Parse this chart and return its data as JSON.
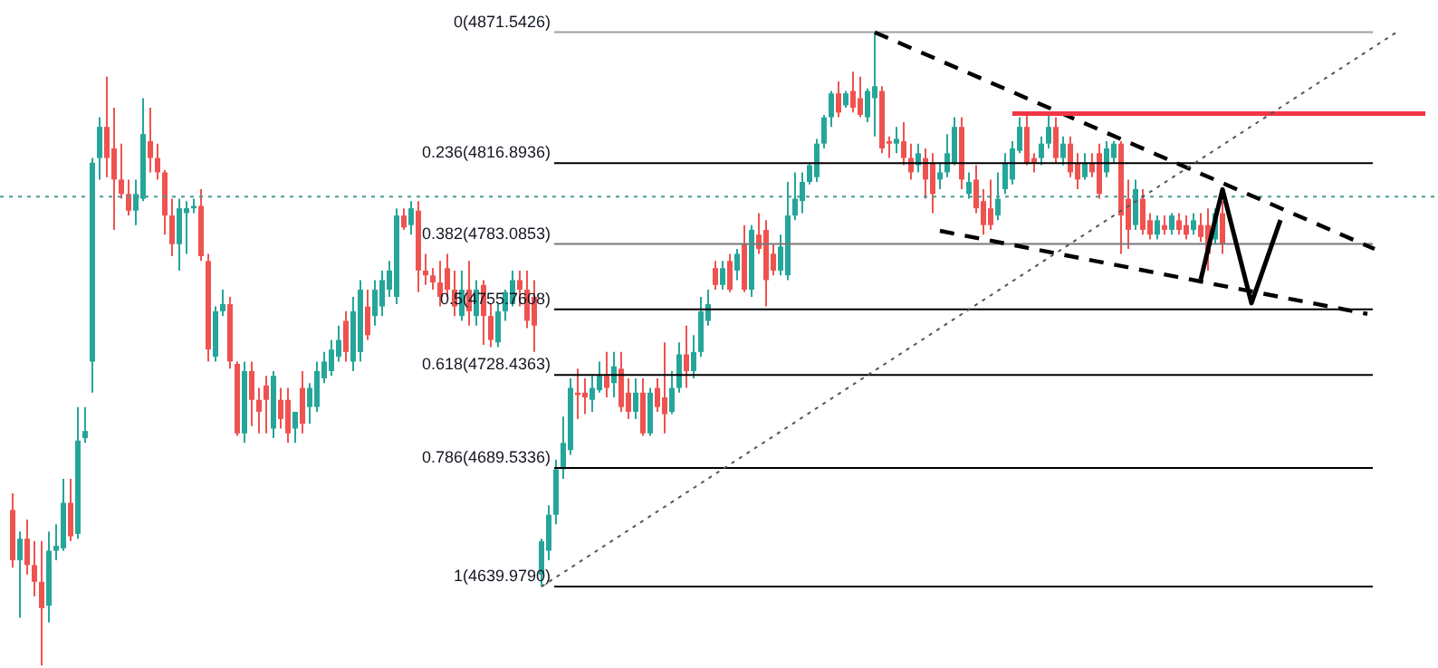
{
  "chart_data": {
    "type": "candlestick",
    "tick_labels": false,
    "ylim": [
      4606,
      4885
    ],
    "categories": [
      null,
      null,
      null,
      null,
      null,
      null,
      null,
      null,
      null,
      null,
      null,
      null,
      null,
      null,
      null,
      null,
      null,
      null,
      null,
      null,
      null,
      null,
      null,
      null,
      null,
      null,
      null,
      null,
      null,
      null,
      null,
      null,
      null,
      null,
      null,
      null,
      null,
      null,
      null,
      null,
      null,
      null,
      null,
      null,
      null,
      null,
      null,
      null,
      null,
      null,
      null,
      null,
      null,
      null,
      null,
      null,
      null,
      null,
      null,
      null,
      null,
      null,
      null,
      null,
      null,
      null,
      null,
      null,
      null,
      null,
      null,
      null,
      null,
      null,
      null,
      null,
      null,
      null,
      null,
      null,
      null,
      null,
      null,
      null,
      null,
      null,
      null,
      null,
      null,
      null,
      null,
      null,
      null,
      null,
      null,
      null,
      null,
      null,
      null,
      null,
      null,
      null,
      null,
      null,
      null,
      null,
      null,
      null,
      null,
      null,
      null,
      null,
      null,
      null,
      null,
      null,
      null,
      null,
      null,
      null,
      null,
      null,
      null,
      null,
      null,
      null,
      null,
      null,
      null,
      null,
      null,
      null,
      null,
      null,
      null,
      null,
      null,
      null,
      null,
      null,
      null,
      null,
      null,
      null,
      null,
      null,
      null,
      null,
      null,
      null,
      null,
      null,
      null,
      null,
      null,
      null,
      null,
      null,
      null,
      null,
      null,
      null,
      null,
      null,
      null,
      null,
      null,
      null,
      null,
      null,
      null,
      null,
      null,
      null,
      null,
      null,
      null,
      null,
      null,
      null,
      null,
      null,
      null,
      null,
      null,
      null,
      null,
      null,
      null,
      null,
      null,
      null,
      null,
      null,
      null,
      null
    ],
    "ohlc": [
      [
        4672,
        4679,
        4648,
        4651
      ],
      [
        4651,
        4663,
        4627,
        4660
      ],
      [
        4660,
        4668,
        4645,
        4649
      ],
      [
        4649,
        4659,
        4636,
        4642
      ],
      [
        4642,
        4659,
        4607,
        4631
      ],
      [
        4632,
        4663,
        4625,
        4655
      ],
      [
        4655,
        4666,
        4651,
        4657
      ],
      [
        4656,
        4685,
        4655,
        4675
      ],
      [
        4675,
        4685,
        4659,
        4661
      ],
      [
        4662,
        4715,
        4660,
        4701
      ],
      [
        4702,
        4715,
        4700,
        4705
      ],
      [
        4734,
        4819,
        4721,
        4817
      ],
      [
        4819,
        4836,
        4810,
        4832
      ],
      [
        4832,
        4853,
        4811,
        4819
      ],
      [
        4823,
        4840,
        4789,
        4810
      ],
      [
        4810,
        4825,
        4802,
        4804
      ],
      [
        4804,
        4810,
        4795,
        4797
      ],
      [
        4797,
        4810,
        4791,
        4804
      ],
      [
        4802,
        4844,
        4801,
        4829
      ],
      [
        4826,
        4840,
        4813,
        4819
      ],
      [
        4819,
        4825,
        4810,
        4813
      ],
      [
        4813,
        4814,
        4787,
        4795
      ],
      [
        4795,
        4802,
        4778,
        4783
      ],
      [
        4783,
        4802,
        4772,
        4798
      ],
      [
        4796,
        4801,
        4779,
        4798
      ],
      [
        4798,
        4802,
        4796,
        4799
      ],
      [
        4799,
        4806,
        4776,
        4778
      ],
      [
        4776,
        4779,
        4734,
        4739
      ],
      [
        4736,
        4757,
        4734,
        4755
      ],
      [
        4755,
        4764,
        4753,
        4758
      ],
      [
        4758,
        4761,
        4731,
        4734
      ],
      [
        4733,
        4734,
        4703,
        4704
      ],
      [
        4704,
        4734,
        4700,
        4730
      ],
      [
        4730,
        4734,
        4707,
        4718
      ],
      [
        4718,
        4723,
        4704,
        4713
      ],
      [
        4724,
        4728,
        4704,
        4718
      ],
      [
        4706,
        4730,
        4702,
        4728
      ],
      [
        4718,
        4723,
        4706,
        4710
      ],
      [
        4718,
        4723,
        4700,
        4704
      ],
      [
        4706,
        4713,
        4700,
        4713
      ],
      [
        4723,
        4730,
        4704,
        4708
      ],
      [
        4715,
        4725,
        4708,
        4723
      ],
      [
        4715,
        4734,
        4713,
        4730
      ],
      [
        4727,
        4738,
        4725,
        4734
      ],
      [
        4730,
        4743,
        4728,
        4739
      ],
      [
        4736,
        4749,
        4734,
        4743
      ],
      [
        4751,
        4755,
        4734,
        4738
      ],
      [
        4734,
        4761,
        4730,
        4755
      ],
      [
        4738,
        4768,
        4734,
        4764
      ],
      [
        4757,
        4764,
        4743,
        4745
      ],
      [
        4753,
        4768,
        4749,
        4764
      ],
      [
        4757,
        4772,
        4753,
        4768
      ],
      [
        4764,
        4776,
        4761,
        4772
      ],
      [
        4761,
        4798,
        4758,
        4795
      ],
      [
        4795,
        4798,
        4789,
        4790
      ],
      [
        4791,
        4801,
        4787,
        4798
      ],
      [
        4797,
        4801,
        4763,
        4772
      ],
      [
        4772,
        4779,
        4766,
        4770
      ],
      [
        4770,
        4773,
        4764,
        4767
      ],
      [
        4767,
        4776,
        4757,
        4761
      ],
      [
        4773,
        4779,
        4761,
        4764
      ],
      [
        4764,
        4772,
        4753,
        4757
      ],
      [
        4753,
        4772,
        4751,
        4764
      ],
      [
        4764,
        4776,
        4749,
        4755
      ],
      [
        4753,
        4768,
        4749,
        4764
      ],
      [
        4766,
        4768,
        4741,
        4753
      ],
      [
        4753,
        4758,
        4740,
        4743
      ],
      [
        4742,
        4758,
        4740,
        4755
      ],
      [
        4755,
        4764,
        4751,
        4763
      ],
      [
        4758,
        4772,
        4757,
        4768
      ],
      [
        4768,
        4772,
        4757,
        4764
      ],
      [
        4764,
        4772,
        4748,
        4751
      ],
      [
        4761,
        4768,
        4738,
        4749
      ],
      [
        4645,
        4660,
        4640,
        4659
      ],
      [
        4655,
        4674,
        4651,
        4670
      ],
      [
        4670,
        4693,
        4666,
        4689
      ],
      [
        4689,
        4711,
        4685,
        4700
      ],
      [
        4697,
        4727,
        4695,
        4723
      ],
      [
        4721,
        4731,
        4710,
        4720
      ],
      [
        4721,
        4727,
        4712,
        4719
      ],
      [
        4718,
        4728,
        4713,
        4723
      ],
      [
        4722,
        4734,
        4721,
        4728
      ],
      [
        4728,
        4738,
        4719,
        4723
      ],
      [
        4725,
        4738,
        4719,
        4732
      ],
      [
        4731,
        4738,
        4713,
        4715
      ],
      [
        4721,
        4727,
        4710,
        4713
      ],
      [
        4713,
        4727,
        4710,
        4721
      ],
      [
        4721,
        4727,
        4703,
        4704
      ],
      [
        4704,
        4723,
        4703,
        4721
      ],
      [
        4723,
        4727,
        4713,
        4715
      ],
      [
        4719,
        4742,
        4704,
        4712
      ],
      [
        4713,
        4730,
        4712,
        4723
      ],
      [
        4723,
        4742,
        4721,
        4737
      ],
      [
        4737,
        4749,
        4723,
        4730
      ],
      [
        4730,
        4745,
        4727,
        4738
      ],
      [
        4738,
        4761,
        4736,
        4755
      ],
      [
        4751,
        4764,
        4749,
        4758
      ],
      [
        4773,
        4776,
        4764,
        4766
      ],
      [
        4766,
        4776,
        4764,
        4773
      ],
      [
        4776,
        4779,
        4763,
        4764
      ],
      [
        4772,
        4781,
        4768,
        4779
      ],
      [
        4783,
        4791,
        4763,
        4764
      ],
      [
        4764,
        4791,
        4761,
        4789
      ],
      [
        4787,
        4796,
        4779,
        4781
      ],
      [
        4789,
        4793,
        4757,
        4768
      ],
      [
        4779,
        4783,
        4770,
        4772
      ],
      [
        4772,
        4787,
        4770,
        4782
      ],
      [
        4770,
        4809,
        4768,
        4795
      ],
      [
        4795,
        4813,
        4793,
        4802
      ],
      [
        4801,
        4813,
        4796,
        4809
      ],
      [
        4809,
        4817,
        4808,
        4816
      ],
      [
        4811,
        4827,
        4809,
        4825
      ],
      [
        4825,
        4837,
        4823,
        4836
      ],
      [
        4836,
        4847,
        4832,
        4846
      ],
      [
        4846,
        4851,
        4836,
        4838
      ],
      [
        4841,
        4847,
        4840,
        4846
      ],
      [
        4847,
        4855,
        4838,
        4840
      ],
      [
        4844,
        4853,
        4836,
        4837
      ],
      [
        4836,
        4848,
        4834,
        4847
      ],
      [
        4844,
        4871.5426,
        4828,
        4849
      ],
      [
        4847,
        4849,
        4821,
        4823
      ],
      [
        4826,
        4828,
        4819,
        4825
      ],
      [
        4825,
        4832,
        4821,
        4827
      ],
      [
        4826,
        4834,
        4816,
        4819
      ],
      [
        4819,
        4825,
        4810,
        4813
      ],
      [
        4816,
        4825,
        4813,
        4821
      ],
      [
        4819,
        4823,
        4802,
        4810
      ],
      [
        4817,
        4821,
        4796,
        4804
      ],
      [
        4810,
        4817,
        4806,
        4813
      ],
      [
        4813,
        4829,
        4811,
        4821
      ],
      [
        4817,
        4836,
        4816,
        4832
      ],
      [
        4832,
        4836,
        4806,
        4810
      ],
      [
        4804,
        4813,
        4802,
        4809
      ],
      [
        4810,
        4816,
        4796,
        4798
      ],
      [
        4801,
        4806,
        4787,
        4791
      ],
      [
        4798,
        4810,
        4789,
        4791
      ],
      [
        4795,
        4813,
        4793,
        4802
      ],
      [
        4806,
        4821,
        4804,
        4817
      ],
      [
        4810,
        4826,
        4808,
        4823
      ],
      [
        4822,
        4836,
        4821,
        4832
      ],
      [
        4832,
        4838,
        4816,
        4817
      ],
      [
        4819,
        4821,
        4813,
        4817
      ],
      [
        4819,
        4828,
        4816,
        4825
      ],
      [
        4825,
        4838,
        4823,
        4832
      ],
      [
        4832,
        4836,
        4817,
        4819
      ],
      [
        4819,
        4828,
        4816,
        4825
      ],
      [
        4825,
        4828,
        4811,
        4813
      ],
      [
        4817,
        4821,
        4806,
        4810
      ],
      [
        4811,
        4821,
        4810,
        4817
      ],
      [
        4817,
        4821,
        4811,
        4813
      ],
      [
        4821,
        4825,
        4802,
        4804
      ],
      [
        4813,
        4826,
        4811,
        4823
      ],
      [
        4819,
        4826,
        4817,
        4825
      ],
      [
        4825,
        4826,
        4779,
        4795
      ],
      [
        4802,
        4810,
        4781,
        4789
      ],
      [
        4791,
        4810,
        4789,
        4806
      ],
      [
        4802,
        4806,
        4787,
        4789
      ],
      [
        4793,
        4796,
        4785,
        4787
      ],
      [
        4787,
        4795,
        4785,
        4793
      ],
      [
        4791,
        4795,
        4787,
        4789
      ],
      [
        4789,
        4796,
        4787,
        4795
      ],
      [
        4793,
        4796,
        4787,
        4789
      ],
      [
        4791,
        4795,
        4785,
        4787
      ],
      [
        4789,
        4796,
        4787,
        4793
      ],
      [
        4791,
        4796,
        4784,
        4786
      ],
      [
        4791,
        4798,
        4772,
        4779
      ],
      [
        4785,
        4798,
        4783,
        4796
      ],
      [
        4796,
        4801,
        4779,
        4783
      ],
      null,
      null,
      null,
      null,
      null,
      null,
      null,
      null,
      null,
      null,
      null,
      null,
      null,
      null,
      null,
      null,
      null,
      null,
      null,
      null,
      null,
      null,
      null,
      null,
      null,
      null,
      null,
      null
    ],
    "colors": [
      "#ef5350",
      "#26a69a",
      "#ef5350",
      "#ef5350",
      "#ef5350",
      "#26a69a",
      "#26a69a",
      "#26a69a",
      "#ef5350",
      "#26a69a",
      "#26a69a",
      "#26a69a",
      "#26a69a",
      "#ef5350",
      "#ef5350",
      "#ef5350",
      "#ef5350",
      "#26a69a",
      "#26a69a",
      "#ef5350",
      "#ef5350",
      "#ef5350",
      "#ef5350",
      "#26a69a",
      "#26a69a",
      "#26a69a",
      "#ef5350",
      "#ef5350",
      "#26a69a",
      "#26a69a",
      "#ef5350",
      "#ef5350",
      "#26a69a",
      "#ef5350",
      "#ef5350",
      "#ef5350",
      "#26a69a",
      "#ef5350",
      "#ef5350",
      "#26a69a",
      "#ef5350",
      "#26a69a",
      "#26a69a",
      "#26a69a",
      "#26a69a",
      "#26a69a",
      "#ef5350",
      "#26a69a",
      "#26a69a",
      "#ef5350",
      "#26a69a",
      "#26a69a",
      "#26a69a",
      "#26a69a",
      "#ef5350",
      "#26a69a",
      "#ef5350",
      "#ef5350",
      "#ef5350",
      "#ef5350",
      "#ef5350",
      "#ef5350",
      "#26a69a",
      "#ef5350",
      "#26a69a",
      "#ef5350",
      "#ef5350",
      "#26a69a",
      "#26a69a",
      "#26a69a",
      "#ef5350",
      "#ef5350",
      "#ef5350",
      "#26a69a",
      "#26a69a",
      "#26a69a",
      "#26a69a",
      "#26a69a",
      "#ef5350",
      "#ef5350",
      "#26a69a",
      "#26a69a",
      "#ef5350",
      "#26a69a",
      "#ef5350",
      "#ef5350",
      "#26a69a",
      "#ef5350",
      "#26a69a",
      "#ef5350",
      "#ef5350",
      "#26a69a",
      "#26a69a",
      "#ef5350",
      "#26a69a",
      "#26a69a",
      "#26a69a",
      "#ef5350",
      "#26a69a",
      "#ef5350",
      "#26a69a",
      "#ef5350",
      "#26a69a",
      "#ef5350",
      "#ef5350",
      "#ef5350",
      "#26a69a",
      "#26a69a",
      "#26a69a",
      "#26a69a",
      "#26a69a",
      "#26a69a",
      "#26a69a",
      "#26a69a",
      "#ef5350",
      "#26a69a",
      "#ef5350",
      "#ef5350",
      "#26a69a",
      "#26a69a",
      "#ef5350",
      "#ef5350",
      "#26a69a",
      "#ef5350",
      "#ef5350",
      "#26a69a",
      "#ef5350",
      "#ef5350",
      "#26a69a",
      "#26a69a",
      "#26a69a",
      "#ef5350",
      "#26a69a",
      "#ef5350",
      "#ef5350",
      "#ef5350",
      "#26a69a",
      "#26a69a",
      "#26a69a",
      "#26a69a",
      "#ef5350",
      "#ef5350",
      "#26a69a",
      "#26a69a",
      "#ef5350",
      "#26a69a",
      "#ef5350",
      "#ef5350",
      "#26a69a",
      "#ef5350",
      "#ef5350",
      "#26a69a",
      "#26a69a",
      "#ef5350",
      "#ef5350",
      "#26a69a",
      "#ef5350",
      "#ef5350",
      "#26a69a",
      "#ef5350",
      "#26a69a",
      "#ef5350",
      "#ef5350",
      "#26a69a",
      "#ef5350",
      "#ef5350",
      "#26a69a",
      "#ef5350",
      null,
      null,
      null,
      null,
      null,
      null,
      null,
      null,
      null,
      null,
      null,
      null,
      null,
      null,
      null,
      null,
      null,
      null,
      null,
      null,
      null,
      null,
      null,
      null,
      null,
      null,
      null,
      null
    ],
    "series": [
      {
        "type": "line",
        "color": "#000000",
        "line_style": "dashed",
        "values": [
          null,
          null,
          null,
          null,
          null,
          null,
          null,
          null,
          null,
          null,
          null,
          null,
          null,
          null,
          null,
          null,
          null,
          null,
          null,
          null,
          null,
          null,
          null,
          null,
          null,
          null,
          null,
          null,
          null,
          null,
          null,
          null,
          null,
          null,
          null,
          null,
          null,
          null,
          null,
          null,
          null,
          null,
          null,
          null,
          null,
          null,
          null,
          null,
          null,
          null,
          null,
          null,
          null,
          null,
          null,
          null,
          null,
          null,
          null,
          null,
          null,
          null,
          null,
          null,
          null,
          null,
          null,
          null,
          null,
          null,
          null,
          null,
          null,
          null,
          null,
          null,
          null,
          null,
          null,
          null,
          null,
          null,
          null,
          null,
          null,
          null,
          null,
          null,
          null,
          null,
          null,
          null,
          null,
          null,
          null,
          null,
          null,
          null,
          null,
          null,
          null,
          null,
          null,
          null,
          null,
          null,
          null,
          null,
          null,
          null,
          null,
          null,
          null,
          null,
          null,
          null,
          null,
          null,
          null,
          4871.5,
          null,
          null,
          null,
          null,
          null,
          null,
          null,
          null,
          null,
          null,
          null,
          null,
          null,
          null,
          null,
          null,
          null,
          null,
          null,
          null,
          null,
          null,
          null,
          null,
          null,
          null,
          null,
          null,
          null,
          null,
          null,
          null,
          null,
          null,
          null,
          null,
          null,
          null,
          null,
          null,
          null,
          null,
          null,
          null,
          null,
          null,
          null,
          null,
          null,
          null,
          null,
          null,
          null,
          null,
          null,
          null,
          null,
          null,
          null,
          null,
          null,
          null,
          null,
          null,
          null,
          null,
          null,
          null,
          4781.0,
          null,
          null,
          null,
          null,
          null,
          null,
          null
        ]
      },
      {
        "type": "line",
        "color": "#000000",
        "line_style": "dashed",
        "values": [
          null,
          null,
          null,
          null,
          null,
          null,
          null,
          null,
          null,
          null,
          null,
          null,
          null,
          null,
          null,
          null,
          null,
          null,
          null,
          null,
          null,
          null,
          null,
          null,
          null,
          null,
          null,
          null,
          null,
          null,
          null,
          null,
          null,
          null,
          null,
          null,
          null,
          null,
          null,
          null,
          null,
          null,
          null,
          null,
          null,
          null,
          null,
          null,
          null,
          null,
          null,
          null,
          null,
          null,
          null,
          null,
          null,
          null,
          null,
          null,
          null,
          null,
          null,
          null,
          null,
          null,
          null,
          null,
          null,
          null,
          null,
          null,
          null,
          null,
          null,
          null,
          null,
          null,
          null,
          null,
          null,
          null,
          null,
          null,
          null,
          null,
          null,
          null,
          null,
          null,
          null,
          null,
          null,
          null,
          null,
          null,
          null,
          null,
          null,
          null,
          null,
          null,
          null,
          null,
          null,
          null,
          null,
          null,
          null,
          null,
          null,
          null,
          null,
          null,
          null,
          null,
          null,
          null,
          null,
          null,
          null,
          null,
          null,
          null,
          null,
          null,
          null,
          null,
          4788.6,
          null,
          null,
          null,
          null,
          null,
          null,
          null,
          null,
          null,
          null,
          null,
          null,
          null,
          null,
          null,
          null,
          null,
          null,
          null,
          null,
          null,
          null,
          null,
          null,
          null,
          null,
          null,
          null,
          null,
          null,
          null,
          null,
          null,
          null,
          null,
          null,
          null,
          null,
          null,
          null,
          null,
          null,
          null,
          null,
          null,
          null,
          null,
          null,
          null,
          null,
          null,
          null,
          null,
          null,
          null,
          null,
          null,
          null,
          4753.9,
          null,
          null,
          null,
          null,
          null,
          null,
          null,
          null
        ]
      },
      {
        "type": "line",
        "color": "#f23645",
        "line_style": "solid",
        "values": [
          null,
          null,
          null,
          null,
          null,
          null,
          null,
          null,
          null,
          null,
          null,
          null,
          null,
          null,
          null,
          null,
          null,
          null,
          null,
          null,
          null,
          null,
          null,
          null,
          null,
          null,
          null,
          null,
          null,
          null,
          null,
          null,
          null,
          null,
          null,
          null,
          null,
          null,
          null,
          null,
          null,
          null,
          null,
          null,
          null,
          null,
          null,
          null,
          null,
          null,
          null,
          null,
          null,
          null,
          null,
          null,
          null,
          null,
          null,
          null,
          null,
          null,
          null,
          null,
          null,
          null,
          null,
          null,
          null,
          null,
          null,
          null,
          null,
          null,
          null,
          null,
          null,
          null,
          null,
          null,
          null,
          null,
          null,
          null,
          null,
          null,
          null,
          null,
          null,
          null,
          null,
          null,
          null,
          null,
          null,
          null,
          null,
          null,
          null,
          null,
          null,
          null,
          null,
          null,
          null,
          null,
          null,
          null,
          null,
          null,
          null,
          null,
          null,
          null,
          null,
          null,
          null,
          null,
          null,
          null,
          null,
          null,
          null,
          null,
          null,
          null,
          null,
          null,
          null,
          null,
          null,
          null,
          null,
          null,
          null,
          null,
          null,
          null,
          4837.6,
          null,
          null,
          null,
          null,
          null,
          null,
          null,
          null,
          null,
          null,
          null,
          null,
          null,
          null,
          null,
          null,
          null,
          null,
          null,
          null,
          null,
          null,
          null,
          null,
          null,
          null,
          null,
          null,
          null,
          null,
          null,
          null,
          null,
          null,
          null,
          null,
          null,
          null,
          null,
          null,
          null,
          null,
          null,
          null,
          null,
          null,
          null,
          null,
          null,
          null,
          null,
          null,
          null,
          null,
          null,
          null,
          4837.6
        ]
      },
      {
        "type": "line",
        "color": "#555555",
        "line_style": "dotted",
        "values": [
          null,
          null,
          null,
          null,
          null,
          null,
          null,
          null,
          null,
          null,
          null,
          null,
          null,
          null,
          null,
          null,
          null,
          null,
          null,
          null,
          null,
          null,
          null,
          null,
          null,
          null,
          null,
          null,
          null,
          null,
          null,
          null,
          null,
          null,
          null,
          null,
          null,
          null,
          null,
          null,
          null,
          null,
          null,
          null,
          null,
          null,
          null,
          null,
          null,
          null,
          null,
          null,
          null,
          null,
          null,
          null,
          null,
          null,
          null,
          null,
          null,
          null,
          null,
          null,
          null,
          null,
          null,
          null,
          null,
          null,
          null,
          null,
          null,
          4640.0,
          null,
          null,
          null,
          null,
          null,
          null,
          null,
          null,
          null,
          null,
          null,
          null,
          null,
          null,
          null,
          null,
          null,
          null,
          null,
          null,
          null,
          null,
          null,
          null,
          null,
          null,
          null,
          null,
          null,
          null,
          null,
          null,
          null,
          null,
          null,
          null,
          null,
          null,
          null,
          null,
          null,
          null,
          null,
          null,
          null,
          null,
          null,
          null,
          null,
          null,
          null,
          null,
          null,
          null,
          null,
          null,
          null,
          null,
          null,
          null,
          null,
          null,
          null,
          null,
          null,
          null,
          null,
          null,
          null,
          null,
          null,
          null,
          null,
          null,
          null,
          null,
          null,
          null,
          null,
          null,
          null,
          null,
          null,
          null,
          null,
          null,
          null,
          null,
          null,
          null,
          null,
          null,
          null,
          null,
          null,
          null,
          null,
          null,
          null,
          null,
          null,
          null,
          null,
          null,
          null,
          null,
          null,
          null,
          null,
          null,
          null,
          null,
          null,
          null,
          null,
          null,
          null,
          4871.5,
          null,
          null,
          null,
          null
        ]
      },
      {
        "type": "line",
        "color": "#000000",
        "line_style": "solid",
        "values": [
          null,
          null,
          null,
          null,
          null,
          null,
          null,
          null,
          null,
          null,
          null,
          null,
          null,
          null,
          null,
          null,
          null,
          null,
          null,
          null,
          null,
          null,
          null,
          null,
          null,
          null,
          null,
          null,
          null,
          null,
          null,
          null,
          null,
          null,
          null,
          null,
          null,
          null,
          null,
          null,
          null,
          null,
          null,
          null,
          null,
          null,
          null,
          null,
          null,
          null,
          null,
          null,
          null,
          null,
          null,
          null,
          null,
          null,
          null,
          null,
          null,
          null,
          null,
          null,
          null,
          null,
          null,
          null,
          null,
          null,
          null,
          null,
          null,
          null,
          null,
          null,
          null,
          null,
          null,
          null,
          null,
          null,
          null,
          null,
          null,
          null,
          null,
          null,
          null,
          null,
          null,
          null,
          null,
          null,
          null,
          null,
          null,
          null,
          null,
          null,
          null,
          null,
          null,
          null,
          null,
          null,
          null,
          null,
          null,
          null,
          null,
          null,
          null,
          null,
          null,
          null,
          null,
          null,
          null,
          null,
          null,
          null,
          null,
          null,
          null,
          null,
          null,
          null,
          null,
          null,
          null,
          null,
          null,
          null,
          null,
          null,
          null,
          null,
          null,
          null,
          null,
          null,
          null,
          null,
          null,
          null,
          null,
          null,
          null,
          null,
          null,
          null,
          null,
          null,
          null,
          null,
          null,
          null,
          null,
          null,
          null,
          null,
          null,
          null,
          4768.2,
          null,
          null,
          4805.9,
          null,
          null,
          null,
          4758.4,
          null,
          null,
          null,
          4793.1,
          null,
          null,
          null,
          null,
          null,
          null,
          null,
          null,
          null,
          null,
          null,
          null,
          null,
          null,
          null,
          null,
          null,
          null,
          null,
          null
        ]
      }
    ],
    "ref_lines": [
      {
        "axis": "y",
        "value": 4871.5426,
        "label": "0(4871.5426)",
        "color": "#9e9e9e"
      },
      {
        "axis": "y",
        "value": 4816.8936,
        "label": "0.236(4816.8936)",
        "color": "#000000"
      },
      {
        "axis": "y",
        "value": 4783.0853,
        "label": "0.382(4783.0853)",
        "color": "#787878"
      },
      {
        "axis": "y",
        "value": 4755.7608,
        "label": "0.5(4755.7608)",
        "color": "#000000"
      },
      {
        "axis": "y",
        "value": 4728.4363,
        "label": "0.618(4728.4363)",
        "color": "#000000"
      },
      {
        "axis": "y",
        "value": 4689.5336,
        "label": "0.786(4689.5336)",
        "color": "#000000"
      },
      {
        "axis": "y",
        "value": 4639.979,
        "label": "1(4639.9790)",
        "color": "#000000"
      },
      {
        "axis": "y",
        "value": 4802.9,
        "color": "#4a9a93",
        "line_style": "dotted"
      }
    ]
  }
}
